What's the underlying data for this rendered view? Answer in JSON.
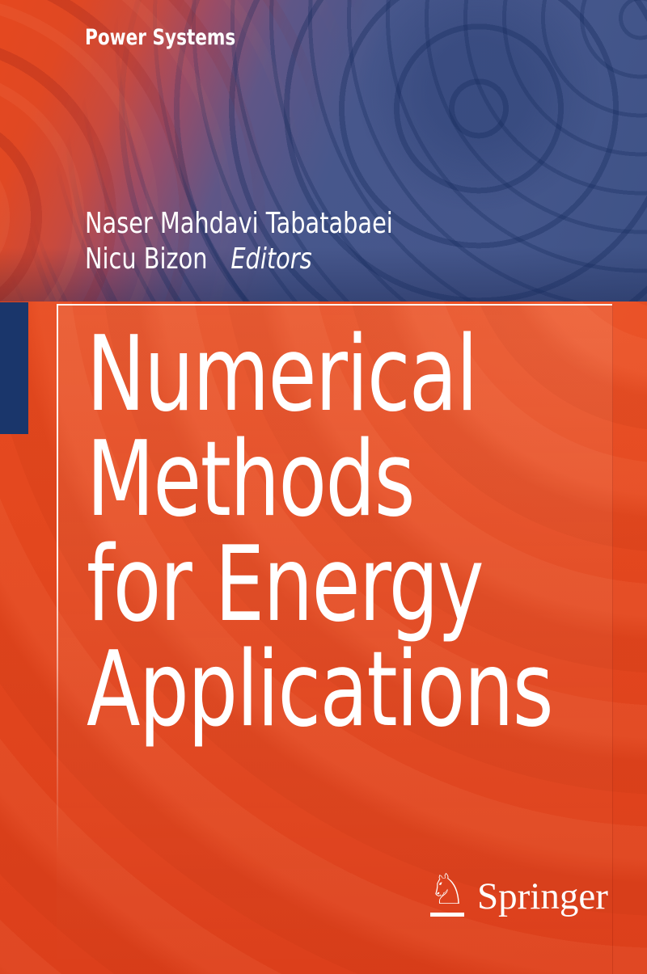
{
  "series": {
    "label": "Power Systems"
  },
  "authors": {
    "line1": "Naser Mahdavi Tabatabaei",
    "line2": "Nicu Bizon",
    "role": "Editors"
  },
  "title": {
    "lines": [
      "Numerical",
      "Methods",
      "for Energy",
      "Applications"
    ]
  },
  "publisher": {
    "name": "Springer",
    "icon": "springer-knight-icon",
    "knight_glyph": "♘"
  },
  "colors": {
    "cover_red": "#e2471e",
    "panel_red": "#e8491f",
    "navy_accent": "#1a366b",
    "ripple_blue": "#46578c",
    "text": "#ffffff"
  }
}
